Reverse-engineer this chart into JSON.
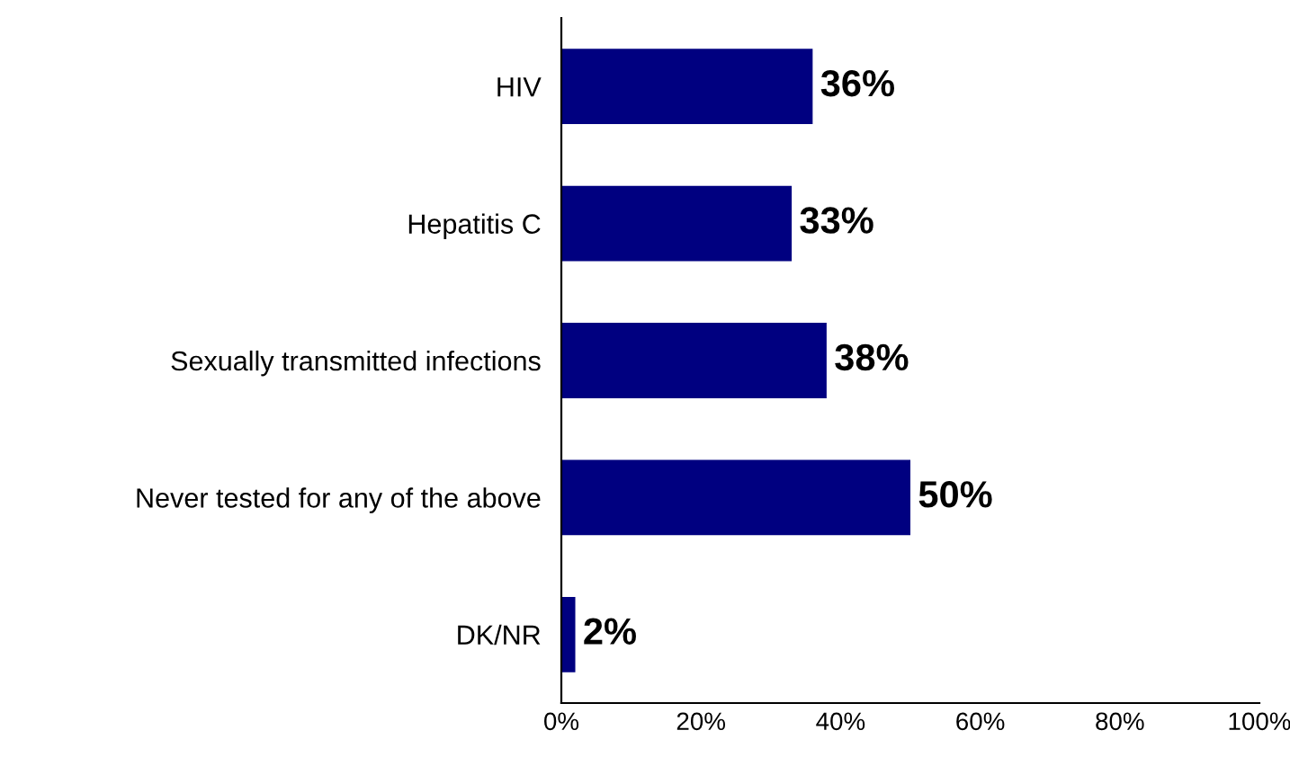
{
  "chart_data": {
    "type": "bar",
    "orientation": "horizontal",
    "categories": [
      "HIV",
      "Hepatitis C",
      "Sexually transmitted infections",
      "Never tested for any of the above",
      "DK/NR"
    ],
    "values": [
      36,
      33,
      38,
      50,
      2
    ],
    "value_labels": [
      "36%",
      "33%",
      "38%",
      "50%",
      "2%"
    ],
    "color": "#000080",
    "xlim": [
      0,
      100
    ],
    "xticks": [
      {
        "value": 0,
        "label": "0%"
      },
      {
        "value": 20,
        "label": "20%"
      },
      {
        "value": 40,
        "label": "40%"
      },
      {
        "value": 60,
        "label": "60%"
      },
      {
        "value": 80,
        "label": "80%"
      },
      {
        "value": 100,
        "label": "100%"
      }
    ],
    "grid": false,
    "legend": false
  }
}
